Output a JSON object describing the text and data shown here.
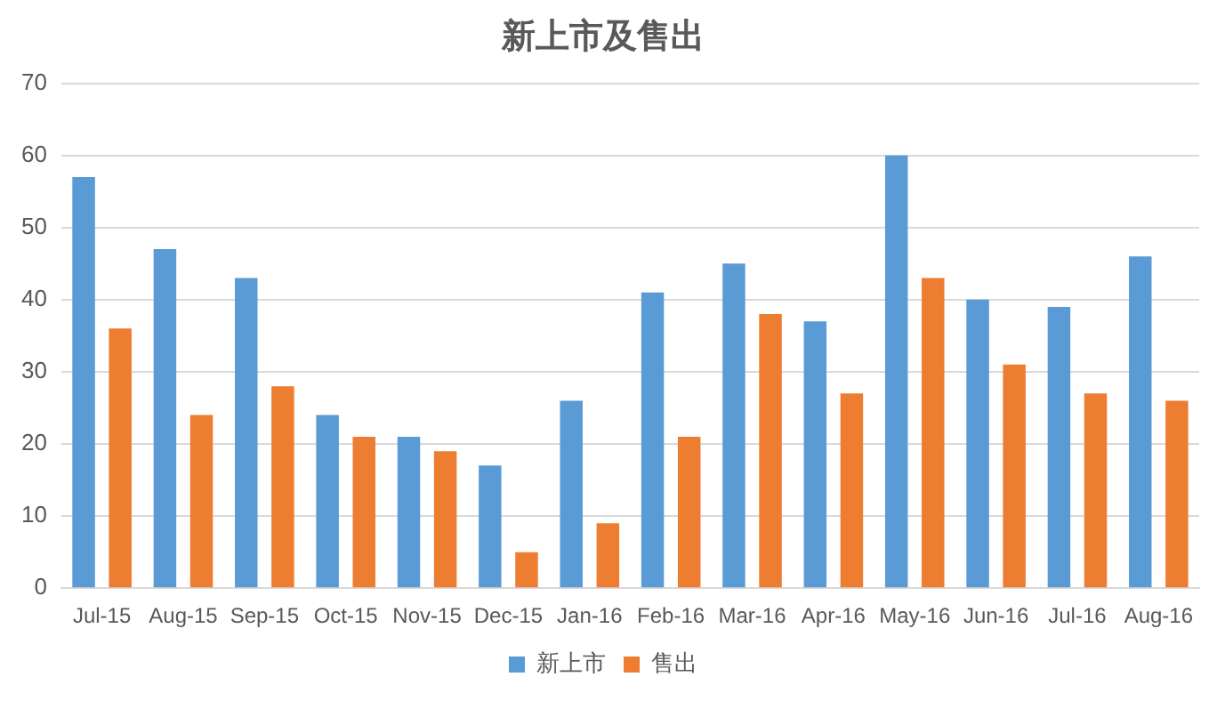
{
  "chart_data": {
    "type": "bar",
    "title": "新上市及售出",
    "categories": [
      "Jul-15",
      "Aug-15",
      "Sep-15",
      "Oct-15",
      "Nov-15",
      "Dec-15",
      "Jan-16",
      "Feb-16",
      "Mar-16",
      "Apr-16",
      "May-16",
      "Jun-16",
      "Jul-16",
      "Aug-16"
    ],
    "series": [
      {
        "name": "新上市",
        "color": "#5b9bd5",
        "values": [
          57,
          47,
          43,
          24,
          21,
          17,
          26,
          41,
          45,
          37,
          60,
          40,
          39,
          46
        ]
      },
      {
        "name": "售出",
        "color": "#ed7d31",
        "values": [
          36,
          24,
          28,
          21,
          19,
          5,
          9,
          21,
          38,
          27,
          43,
          31,
          27,
          26
        ]
      }
    ],
    "ylim": [
      0,
      70
    ],
    "yticks": [
      0,
      10,
      20,
      30,
      40,
      50,
      60,
      70
    ],
    "grid": "y",
    "legend": "bottom"
  }
}
